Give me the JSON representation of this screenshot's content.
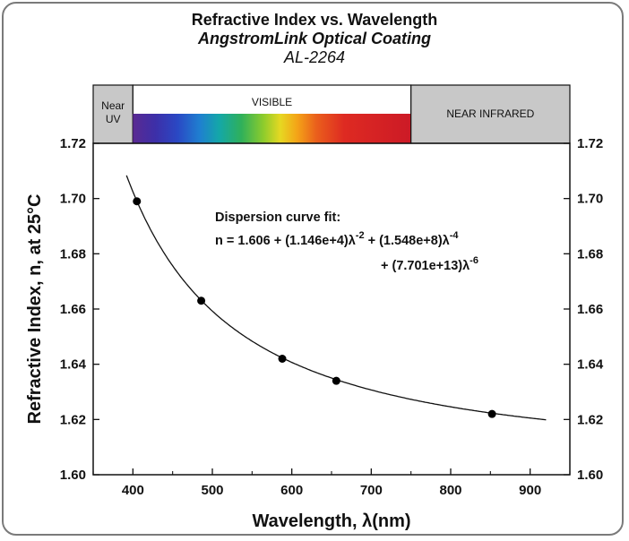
{
  "chart_data": {
    "type": "scatter",
    "title": "Refractive Index vs. Wavelength",
    "subtitle": "AngstromLink Optical Coating",
    "subtitle2": "AL-2264",
    "xlabel": "Wavelength,  λ(nm)",
    "ylabel": "Refractive Index, n, at 25°C",
    "xlim": [
      350,
      950
    ],
    "ylim": [
      1.6,
      1.72
    ],
    "xticks": [
      400,
      500,
      600,
      700,
      800,
      900
    ],
    "yticks": [
      1.6,
      1.62,
      1.64,
      1.66,
      1.68,
      1.7,
      1.72
    ],
    "ytick_labels": [
      "1.60",
      "1.62",
      "1.64",
      "1.66",
      "1.68",
      "1.70",
      "1.72"
    ],
    "right_axis_ticks": true,
    "grid": false,
    "series": [
      {
        "points": [
          {
            "x": 405,
            "y": 1.699
          },
          {
            "x": 486,
            "y": 1.663
          },
          {
            "x": 588,
            "y": 1.642
          },
          {
            "x": 656,
            "y": 1.634
          },
          {
            "x": 852,
            "y": 1.622
          }
        ]
      }
    ],
    "fit_curve": {
      "coefficients": {
        "a": 1.606,
        "b": 11460,
        "c": 154800000,
        "d": 77010000000000
      },
      "x_range": [
        392,
        920
      ]
    },
    "annotation": {
      "heading": "Dispersion curve fit:",
      "line1": [
        "n = 1.606 + (1.146e+4)λ",
        "-2",
        " + (1.548e+8)λ",
        "-4"
      ],
      "line2": [
        "+ (7.701e+13)λ",
        "-6"
      ]
    },
    "spectrum_bands": [
      {
        "label_lines": [
          "Near",
          "UV"
        ],
        "from": 350,
        "to": 400,
        "color": "#c8c8c8"
      },
      {
        "label_lines": [
          "VISIBLE"
        ],
        "from": 400,
        "to": 750,
        "color": "#ffffff"
      },
      {
        "label_lines": [
          "NEAR INFRARED"
        ],
        "from": 750,
        "to": 950,
        "color": "#c8c8c8"
      }
    ],
    "marker_color": "#000000",
    "line_color": "#000000"
  }
}
